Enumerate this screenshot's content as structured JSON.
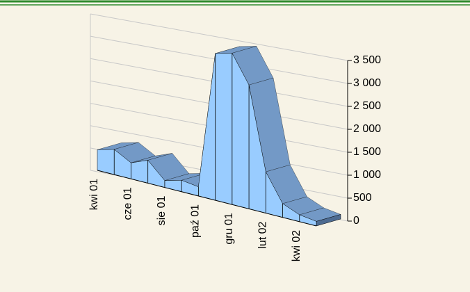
{
  "chart_data": {
    "type": "area3d",
    "categories": [
      "kwi 01",
      null,
      "cze 01",
      null,
      "sie 01",
      null,
      "paź 01",
      null,
      "gru 01",
      null,
      "lut 02",
      null,
      "kwi 02",
      null
    ],
    "values": [
      450,
      550,
      350,
      500,
      150,
      250,
      200,
      3200,
      3300,
      2700,
      900,
      300,
      150,
      100
    ],
    "color": "#99ccff",
    "top_color": "#7399c6",
    "end_color": "#4d6b91",
    "ylim": [
      0,
      3500
    ],
    "yticks": [
      0,
      500,
      {
        "value": 1000,
        "label": "1 000"
      },
      {
        "value": 1500,
        "label": "1 500"
      },
      {
        "value": 2000,
        "label": "2 000"
      },
      {
        "value": 2500,
        "label": "2 500"
      },
      {
        "value": 3000,
        "label": "3 000"
      },
      {
        "value": 3500,
        "label": "3 500"
      }
    ],
    "grid": true
  }
}
